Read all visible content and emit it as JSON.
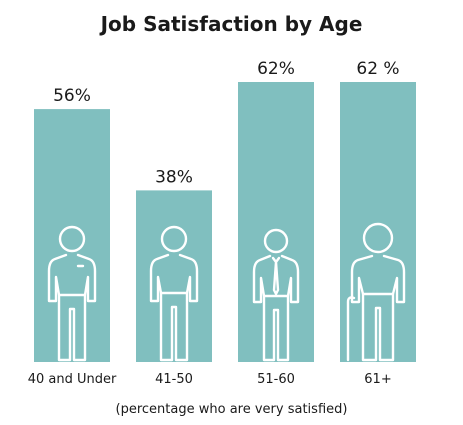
{
  "chart_data": {
    "type": "bar",
    "title": "Job Satisfaction by Age",
    "subtitle": "(percentage who are very satisfied)",
    "categories": [
      "40 and Under",
      "41-50",
      "51-60",
      "61+"
    ],
    "values": [
      56,
      38,
      62,
      62
    ],
    "value_labels": [
      "56%",
      "38%",
      "62%",
      "62 %"
    ],
    "figure_icons": [
      "young-person-icon",
      "adult-person-icon",
      "person-with-tie-icon",
      "elderly-person-with-cane-icon"
    ],
    "ylim": [
      0,
      62
    ],
    "grid": false,
    "legend": "none",
    "bar_color": "#80bfbf",
    "icon_color": "#ffffff"
  }
}
